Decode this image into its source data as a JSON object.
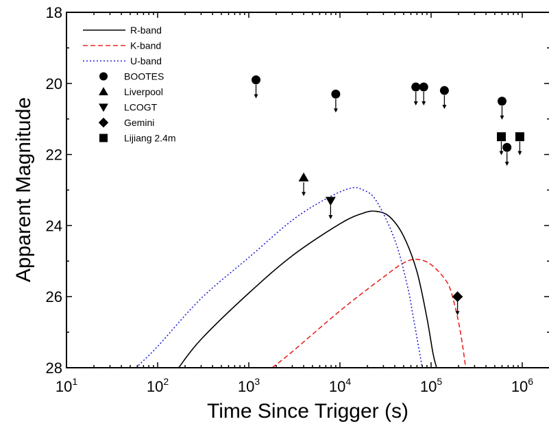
{
  "chart_data": {
    "type": "line",
    "title": "",
    "xlabel": "Time Since Trigger (s)",
    "ylabel": "Apparent Magnitude",
    "x_scale": "log",
    "xlim": [
      10,
      2000000
    ],
    "ylim": [
      28,
      18
    ],
    "y_inverted": true,
    "grid": false,
    "legend_position": "top-left",
    "x_ticks": [
      {
        "base": "10",
        "exp": "1",
        "value": 10
      },
      {
        "base": "10",
        "exp": "2",
        "value": 100
      },
      {
        "base": "10",
        "exp": "3",
        "value": 1000
      },
      {
        "base": "10",
        "exp": "4",
        "value": 10000
      },
      {
        "base": "10",
        "exp": "5",
        "value": 100000
      },
      {
        "base": "10",
        "exp": "6",
        "value": 1000000
      }
    ],
    "y_ticks": [
      "18",
      "20",
      "22",
      "24",
      "26",
      "28"
    ],
    "curves": [
      {
        "name": "R-band",
        "color": "#000000",
        "dash": "solid",
        "points": [
          [
            170,
            28.0
          ],
          [
            300,
            27.2
          ],
          [
            1000,
            25.9
          ],
          [
            3000,
            24.85
          ],
          [
            10000,
            23.95
          ],
          [
            18000,
            23.65
          ],
          [
            25000,
            23.6
          ],
          [
            35000,
            23.75
          ],
          [
            50000,
            24.3
          ],
          [
            70000,
            25.3
          ],
          [
            90000,
            26.6
          ],
          [
            105000,
            27.6
          ],
          [
            115000,
            28.0
          ]
        ]
      },
      {
        "name": "K-band",
        "color": "#e8221e",
        "dash": "dashed",
        "points": [
          [
            1800,
            28.0
          ],
          [
            3000,
            27.55
          ],
          [
            10000,
            26.4
          ],
          [
            30000,
            25.45
          ],
          [
            50000,
            25.05
          ],
          [
            70000,
            24.95
          ],
          [
            100000,
            25.1
          ],
          [
            150000,
            25.6
          ],
          [
            180000,
            26.2
          ],
          [
            210000,
            27.0
          ],
          [
            240000,
            28.0
          ]
        ]
      },
      {
        "name": "U-band",
        "color": "#1f1fd6",
        "dash": "dotted",
        "points": [
          [
            58,
            28.0
          ],
          [
            100,
            27.4
          ],
          [
            300,
            26.05
          ],
          [
            1000,
            24.9
          ],
          [
            3000,
            23.85
          ],
          [
            7000,
            23.25
          ],
          [
            13000,
            22.95
          ],
          [
            18000,
            23.0
          ],
          [
            25000,
            23.3
          ],
          [
            40000,
            24.4
          ],
          [
            55000,
            25.7
          ],
          [
            65000,
            26.7
          ],
          [
            80000,
            28.0
          ]
        ]
      }
    ],
    "point_series": [
      {
        "name": "BOOTES",
        "marker": "circle",
        "upper_limit": true,
        "points": [
          [
            1200,
            19.9
          ],
          [
            9000,
            20.3
          ],
          [
            68000,
            20.1
          ],
          [
            83000,
            20.1
          ],
          [
            140000,
            20.2
          ],
          [
            600000,
            20.5
          ],
          [
            680000,
            21.8
          ]
        ]
      },
      {
        "name": "Liverpool",
        "marker": "triangle-up",
        "upper_limit": true,
        "points": [
          [
            4000,
            22.65
          ]
        ]
      },
      {
        "name": "LCOGT",
        "marker": "triangle-down",
        "upper_limit": true,
        "points": [
          [
            7900,
            23.3
          ]
        ]
      },
      {
        "name": "Gemini",
        "marker": "diamond",
        "upper_limit": true,
        "points": [
          [
            195000,
            26.0
          ]
        ]
      },
      {
        "name": "Lijiang 2.4m",
        "marker": "square",
        "upper_limit": true,
        "points": [
          [
            590000,
            21.5
          ],
          [
            940000,
            21.5
          ]
        ]
      }
    ]
  }
}
